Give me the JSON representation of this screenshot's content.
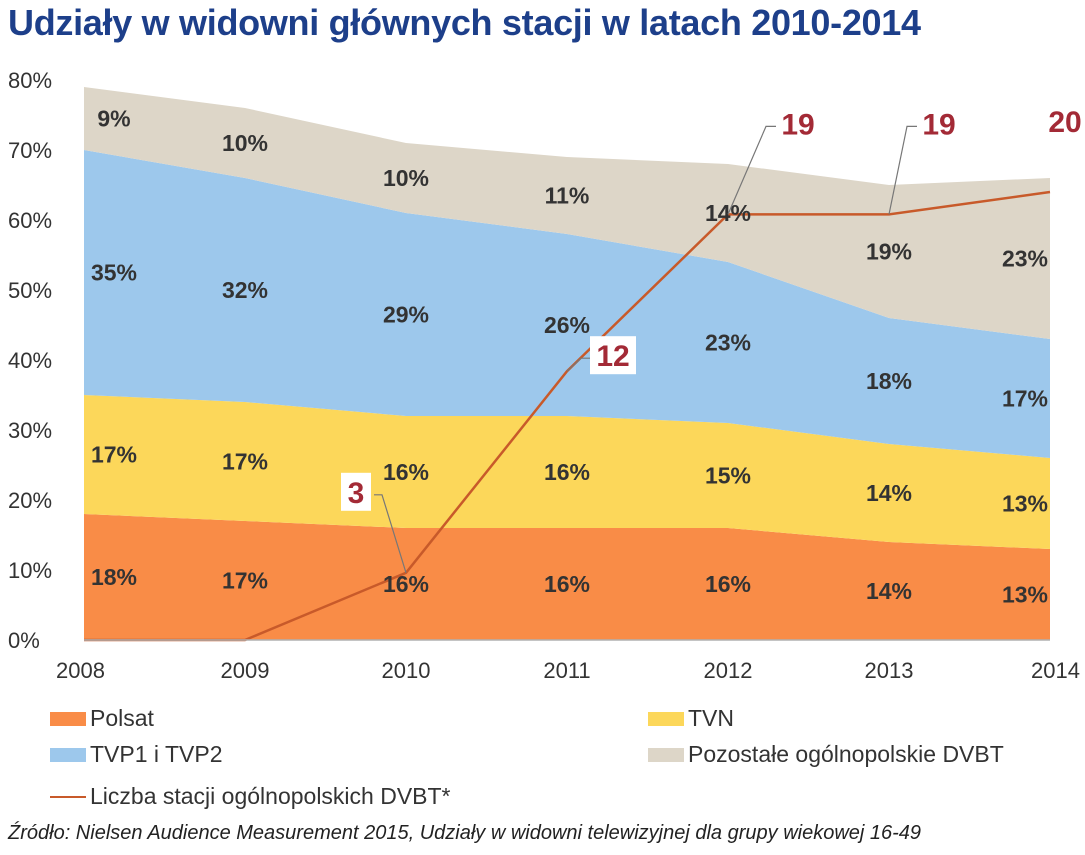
{
  "title": "Udziały w widowni głównych stacji w latach 2010-2014",
  "colors": {
    "polsat": "#f98c47",
    "tvn": "#fcd75a",
    "tvp": "#9dc8ec",
    "other": "#ddd6c8",
    "line": "#c85a2a",
    "callout_text": "#a32a36",
    "axis_text": "#333333",
    "label_text": "#333333"
  },
  "chart_data": {
    "type": "area",
    "stacked": true,
    "years": [
      "2008",
      "2009",
      "2010",
      "2011",
      "2012",
      "2013",
      "2014"
    ],
    "ylim": [
      0,
      80
    ],
    "yticks": [
      "0%",
      "10%",
      "20%",
      "30%",
      "40%",
      "50%",
      "60%",
      "70%",
      "80%"
    ],
    "series": [
      {
        "key": "polsat",
        "name": "Polsat",
        "values": [
          18,
          17,
          16,
          16,
          16,
          14,
          13
        ],
        "labels": [
          "18%",
          "17%",
          "16%",
          "16%",
          "16%",
          "14%",
          "13%"
        ]
      },
      {
        "key": "tvn",
        "name": "TVN",
        "values": [
          17,
          17,
          16,
          16,
          15,
          14,
          13
        ],
        "labels": [
          "17%",
          "17%",
          "16%",
          "16%",
          "15%",
          "14%",
          "13%"
        ]
      },
      {
        "key": "tvp",
        "name": "TVP1 i TVP2",
        "values": [
          35,
          32,
          29,
          26,
          23,
          18,
          17
        ],
        "labels": [
          "35%",
          "32%",
          "29%",
          "26%",
          "23%",
          "18%",
          "17%"
        ]
      },
      {
        "key": "other",
        "name": "Pozostałe ogólnopolskie DVBT",
        "values": [
          9,
          10,
          10,
          11,
          14,
          19,
          23
        ],
        "labels": [
          "9%",
          "10%",
          "10%",
          "11%",
          "14%",
          "19%",
          "23%"
        ]
      }
    ],
    "line": {
      "name": "Liczba stacji ogólnopolskich DVBT*",
      "values": [
        0,
        0,
        3,
        12,
        19,
        19,
        20
      ],
      "callouts": [
        "3",
        "12",
        "19",
        "19",
        "20"
      ]
    }
  },
  "legend": {
    "polsat": "Polsat",
    "tvn": "TVN",
    "tvp": "TVP1 i TVP2",
    "other": "Pozostałe ogólnopolskie DVBT",
    "line": "Liczba stacji ogólnopolskich DVBT*"
  },
  "source": "Źródło: Nielsen Audience Measurement 2015,  Udziały w widowni telewizyjnej dla grupy wiekowej 16-49"
}
